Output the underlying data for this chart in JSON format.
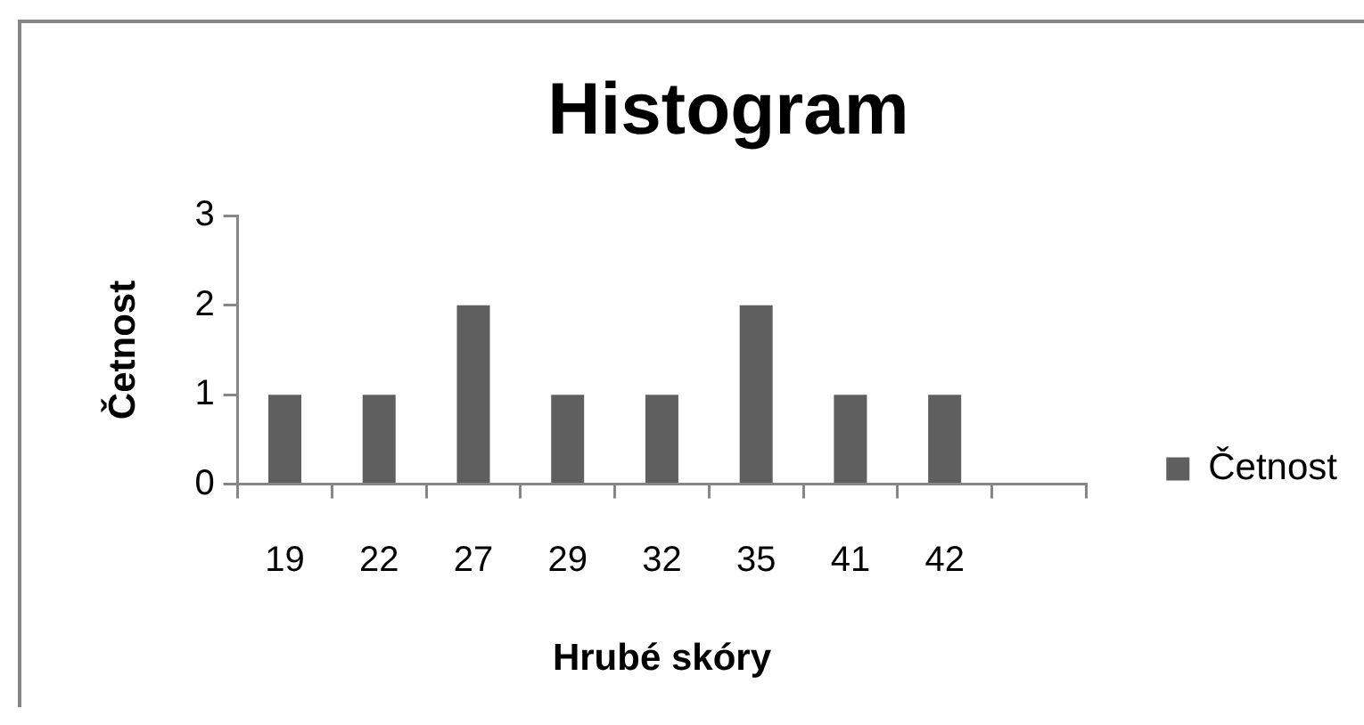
{
  "chart_data": {
    "type": "bar",
    "title": "Histogram",
    "xlabel": "Hrubé skóry",
    "ylabel": "Četnost",
    "categories": [
      "19",
      "22",
      "27",
      "29",
      "32",
      "35",
      "41",
      "42",
      null
    ],
    "series": [
      {
        "name": "Četnost",
        "color": "#5f5f5f",
        "values": [
          1,
          1,
          2,
          1,
          1,
          2,
          1,
          1,
          null
        ]
      }
    ],
    "ylim": [
      0,
      3
    ],
    "yticks": [
      0,
      1,
      2,
      3
    ],
    "legend": "right",
    "grid": false
  }
}
